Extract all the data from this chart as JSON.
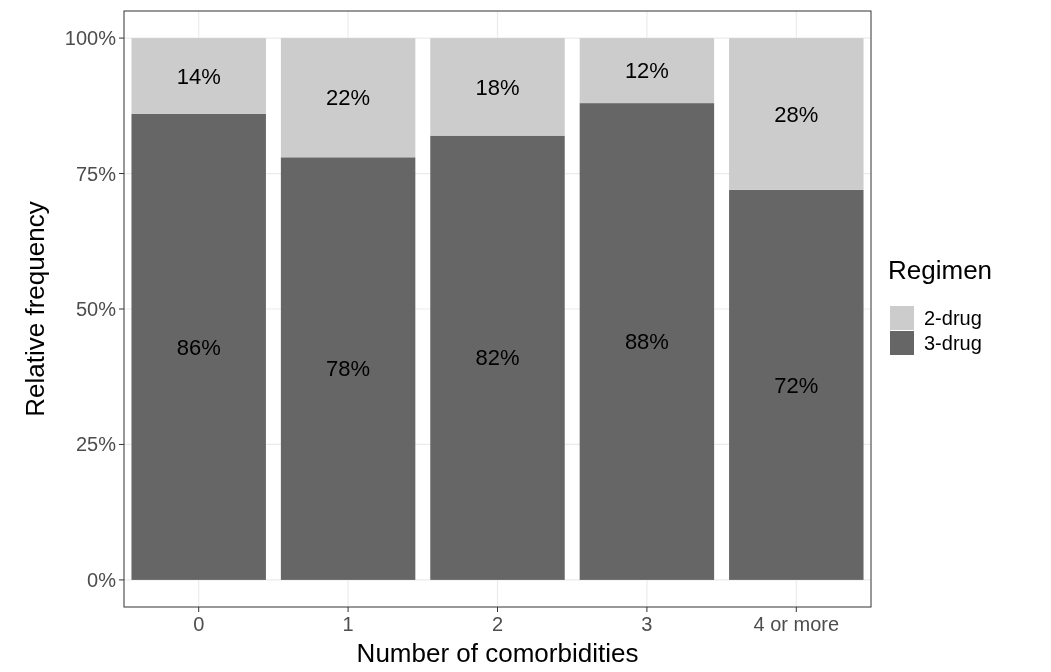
{
  "chart_data": {
    "type": "bar",
    "stacked": true,
    "xlabel": "Number of comorbidities",
    "ylabel": "Relative frequency",
    "legend_title": "Regimen",
    "legend": "right",
    "grid": true,
    "categories": [
      "0",
      "1",
      "2",
      "3",
      "4 or more"
    ],
    "ylim": [
      -5,
      105
    ],
    "yticks": [
      {
        "value": 0,
        "label": "0%"
      },
      {
        "value": 25,
        "label": "25%"
      },
      {
        "value": 50,
        "label": "50%"
      },
      {
        "value": 75,
        "label": "75%"
      },
      {
        "value": 100,
        "label": "100%"
      }
    ],
    "series": [
      {
        "name": "3-drug",
        "color": "#666666",
        "values": [
          86,
          78,
          82,
          88,
          72
        ],
        "value_labels": [
          "86%",
          "78%",
          "82%",
          "88%",
          "72%"
        ]
      },
      {
        "name": "2-drug",
        "color": "#cccccc",
        "values": [
          14,
          22,
          18,
          12,
          28
        ],
        "value_labels": [
          "14%",
          "22%",
          "18%",
          "12%",
          "28%"
        ]
      }
    ]
  }
}
